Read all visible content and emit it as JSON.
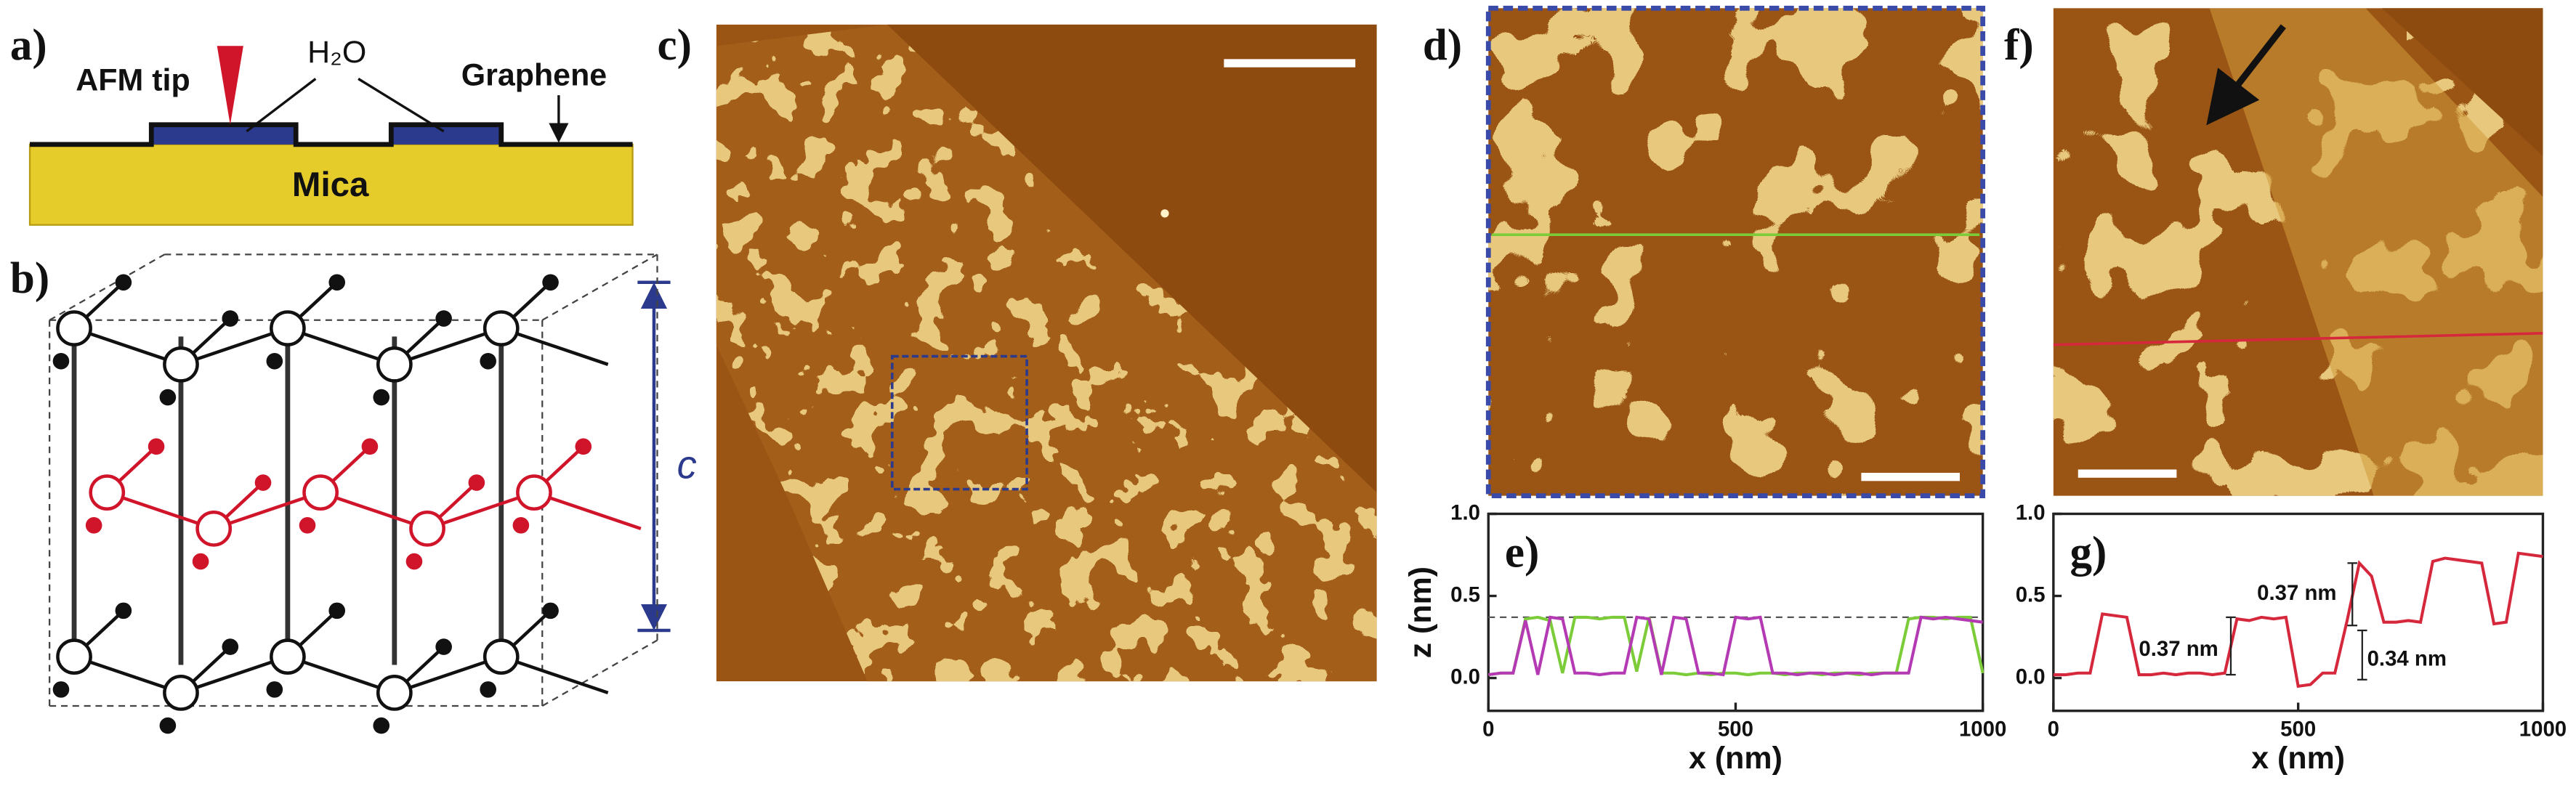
{
  "panels": {
    "a": {
      "label": "a)",
      "tip": "AFM tip",
      "water": "H₂O",
      "graphene": "Graphene",
      "substrate": "Mica"
    },
    "b": {
      "label": "b)",
      "axis": "c"
    },
    "c": {
      "label": "c)"
    },
    "d": {
      "label": "d)"
    },
    "f": {
      "label": "f)"
    }
  },
  "chart_data": [
    {
      "type": "line",
      "label": "e)",
      "xlabel": "x (nm)",
      "ylabel": "z (nm)",
      "x": [
        0,
        25,
        50,
        75,
        100,
        125,
        150,
        175,
        200,
        225,
        250,
        275,
        300,
        325,
        350,
        375,
        400,
        425,
        450,
        475,
        500,
        525,
        550,
        575,
        600,
        625,
        650,
        675,
        700,
        725,
        750,
        775,
        800,
        825,
        850,
        875,
        900,
        925,
        950,
        975,
        1000
      ],
      "series": [
        {
          "color": "#7ccc3a",
          "values": [
            0.02,
            0.03,
            0.03,
            0.36,
            0.37,
            0.35,
            0.03,
            0.37,
            0.37,
            0.36,
            0.37,
            0.37,
            0.04,
            0.37,
            0.03,
            0.03,
            0.02,
            0.03,
            0.02,
            0.03,
            0.03,
            0.02,
            0.03,
            0.03,
            0.02,
            0.03,
            0.03,
            0.02,
            0.03,
            0.03,
            0.02,
            0.03,
            0.03,
            0.03,
            0.36,
            0.37,
            0.37,
            0.36,
            0.37,
            0.37,
            0.03
          ]
        },
        {
          "color": "#b43ab4",
          "values": [
            0.02,
            0.03,
            0.03,
            0.35,
            0.02,
            0.37,
            0.36,
            0.03,
            0.03,
            0.02,
            0.03,
            0.03,
            0.37,
            0.36,
            0.02,
            0.37,
            0.36,
            0.03,
            0.03,
            0.02,
            0.37,
            0.36,
            0.37,
            0.03,
            0.03,
            0.02,
            0.03,
            0.03,
            0.02,
            0.03,
            0.03,
            0.02,
            0.03,
            0.03,
            0.03,
            0.37,
            0.36,
            0.37,
            0.36,
            0.35,
            0.34
          ]
        }
      ],
      "dashed_level": 0.37,
      "xlim": [
        0,
        1000
      ],
      "xticks": [
        0,
        500,
        1000
      ],
      "ylim": [
        -0.2,
        1.0
      ],
      "yticks": [
        {
          "value": 0,
          "label": "0.0"
        },
        {
          "value": 0.5,
          "label": "0.5"
        },
        {
          "value": 1.0,
          "label": "1.0"
        }
      ]
    },
    {
      "type": "line",
      "label": "g)",
      "xlabel": "x (nm)",
      "x": [
        0,
        25,
        50,
        75,
        100,
        125,
        150,
        175,
        200,
        225,
        250,
        275,
        300,
        325,
        350,
        375,
        400,
        425,
        450,
        475,
        500,
        525,
        550,
        575,
        600,
        625,
        650,
        675,
        700,
        725,
        750,
        775,
        800,
        825,
        850,
        875,
        900,
        925,
        950,
        975,
        1000
      ],
      "series": [
        {
          "color": "#d6283c",
          "values": [
            0.02,
            0.02,
            0.03,
            0.03,
            0.39,
            0.38,
            0.37,
            0.02,
            0.02,
            0.03,
            0.02,
            0.03,
            0.03,
            0.02,
            0.03,
            0.36,
            0.35,
            0.37,
            0.36,
            0.37,
            -0.05,
            -0.04,
            0.03,
            0.03,
            0.35,
            0.7,
            0.62,
            0.34,
            0.34,
            0.35,
            0.34,
            0.71,
            0.73,
            0.72,
            0.71,
            0.7,
            0.33,
            0.34,
            0.76,
            0.75,
            0.74
          ]
        }
      ],
      "annotations": [
        "0.37 nm",
        "0.37 nm",
        "0.34 nm"
      ],
      "xlim": [
        0,
        1000
      ],
      "xticks": [
        0,
        500,
        1000
      ],
      "ylim": [
        -0.2,
        1.0
      ],
      "yticks": [
        {
          "value": 0,
          "label": "0.0"
        },
        {
          "value": 0.5,
          "label": "0.5"
        },
        {
          "value": 1.0,
          "label": "1.0"
        }
      ]
    }
  ]
}
